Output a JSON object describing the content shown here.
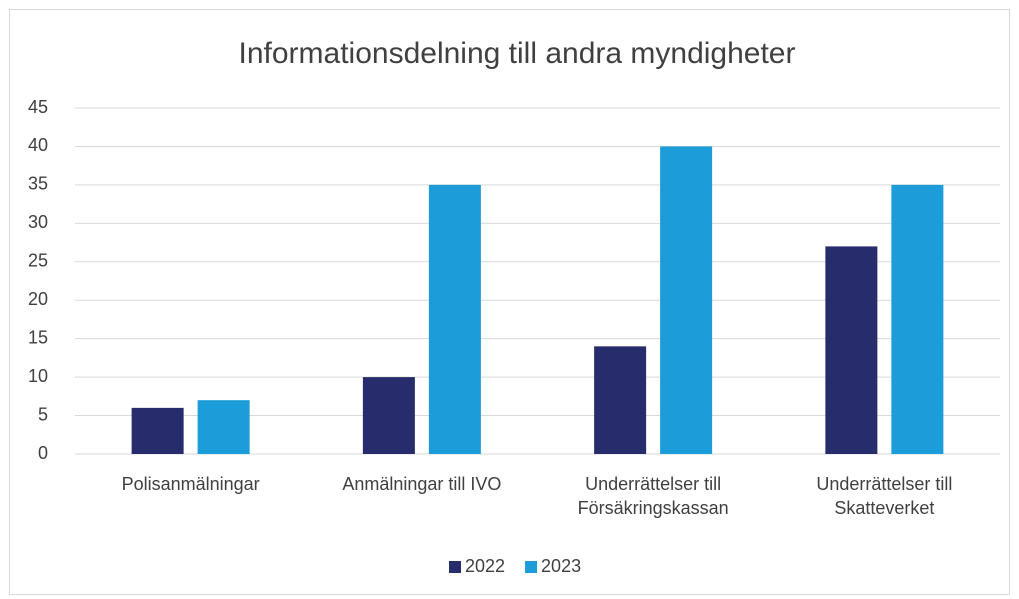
{
  "chart_data": {
    "type": "bar",
    "title": "Informationsdelning till andra myndigheter",
    "categories": [
      "Polisanmälningar",
      "Anmälningar till IVO",
      "Underrättelser till Försäkringskassan",
      "Underrättelser till Skatteverket"
    ],
    "series": [
      {
        "name": "2022",
        "color": "#262c6c",
        "values": [
          6,
          10,
          14,
          27
        ]
      },
      {
        "name": "2023",
        "color": "#1c9cd8",
        "values": [
          7,
          35,
          40,
          35
        ]
      }
    ],
    "ylim": [
      0,
      45
    ],
    "yticks": [
      0,
      5,
      10,
      15,
      20,
      25,
      30,
      35,
      40,
      45
    ],
    "grid": true,
    "legend": "bottom"
  }
}
